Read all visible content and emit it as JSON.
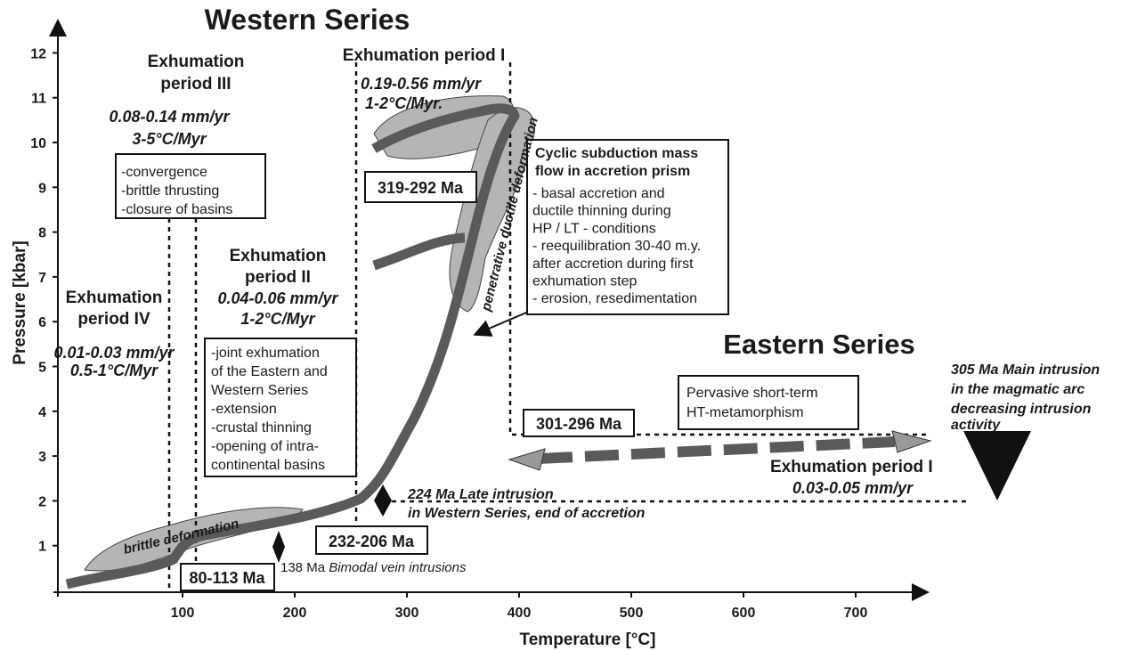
{
  "title_western": "Western Series",
  "title_eastern": "Eastern Series",
  "x_axis": {
    "label": "Temperature [°C]",
    "ticks": [
      "100",
      "200",
      "300",
      "400",
      "500",
      "600",
      "700"
    ]
  },
  "y_axis": {
    "label": "Pressure [kbar]",
    "ticks": [
      "1",
      "2",
      "3",
      "4",
      "5",
      "6",
      "7",
      "8",
      "9",
      "10",
      "11",
      "12"
    ]
  },
  "period_3": {
    "title": [
      "Exhumation",
      "period III"
    ],
    "rate": "0.08-0.14 mm/yr",
    "heat": "3-5°C/Myr",
    "notes": [
      "-convergence",
      "-brittle thrusting",
      "-closure of basins"
    ]
  },
  "period_4": {
    "title": [
      "Exhumation",
      "period IV"
    ],
    "rate": "0.01-0.03 mm/yr",
    "heat": "0.5-1°C/Myr"
  },
  "period_2": {
    "title": [
      "Exhumation",
      "period II"
    ],
    "rate": "0.04-0.06 mm/yr",
    "heat": "1-2°C/Myr",
    "notes": [
      "-joint exhumation",
      "of the Eastern and",
      "Western Series",
      "-extension",
      "-crustal thinning",
      "-opening of intra-",
      "continental basins"
    ]
  },
  "period_1": {
    "title": "Exhumation period I",
    "rate": "0.19-0.56 mm/yr",
    "heat": "1-2°C/Myr."
  },
  "accretion_box": {
    "title": [
      "Cyclic subduction mass",
      "flow in accretion prism"
    ],
    "notes": [
      "- basal accretion and",
      "ductile thinning during",
      "HP / LT - conditions",
      "- reequilibration 30-40 m.y.",
      "after accretion during first",
      "exhumation step",
      "- erosion, resedimentation"
    ]
  },
  "eastern_box": [
    "Pervasive short-term",
    "HT-metamorphism"
  ],
  "ages": {
    "a1": "319-292 Ma",
    "a2": "232-206 Ma",
    "a3": "80-113 Ma",
    "a4": "301-296 Ma"
  },
  "deformation": {
    "ductile": "penetrative ductile deformation",
    "brittle": "brittle deformation"
  },
  "intrusion_224": [
    "224 Ma Late intrusion",
    "in Western Series, end of accretion"
  ],
  "intrusion_138": {
    "age": "138 Ma",
    "text": "Bimodal vein intrusions"
  },
  "intrusion_305": [
    "305 Ma Main intrusion",
    "in the magmatic arc",
    "decreasing intrusion",
    "activity"
  ],
  "eastern_period": {
    "title": "Exhumation period I",
    "rate": "0.03-0.05 mm/yr"
  }
}
